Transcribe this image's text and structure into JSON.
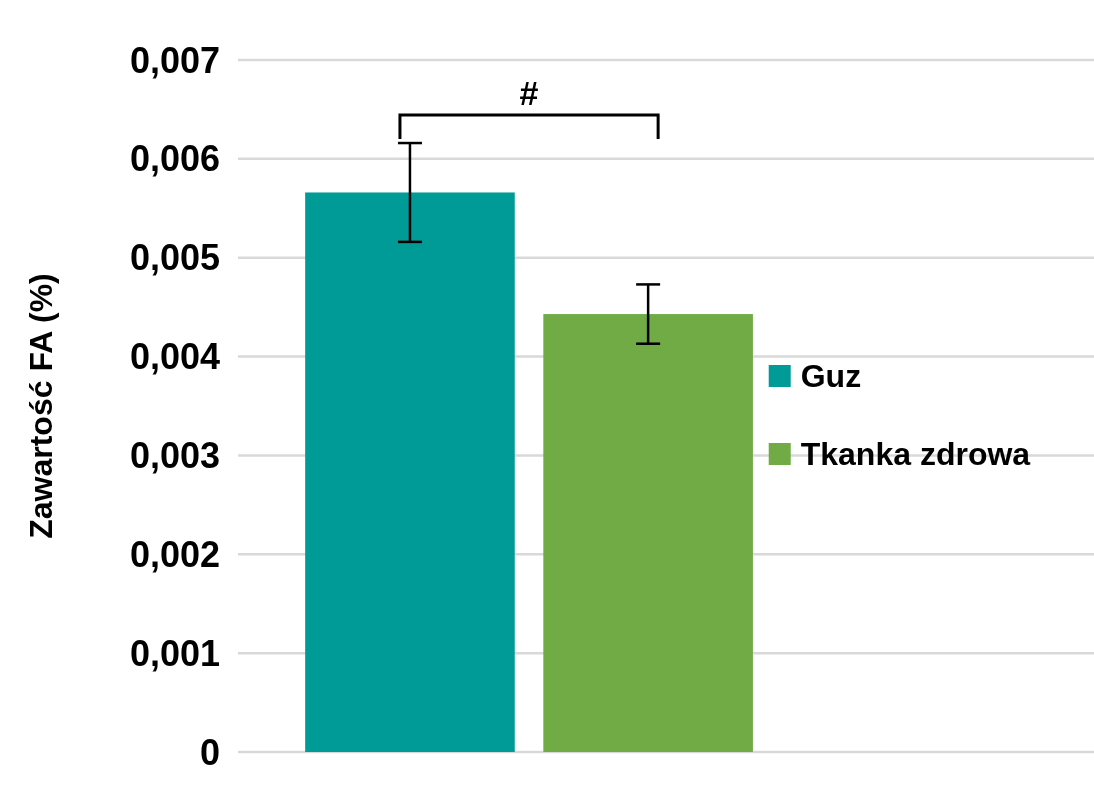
{
  "chart_data": {
    "type": "bar",
    "ylabel": "Zawartość FA (%)",
    "categories": [
      null
    ],
    "series": [
      {
        "name": "Guz",
        "color": "#009a97",
        "values": [
          0.00566
        ],
        "errors": [
          0.0005
        ]
      },
      {
        "name": "Tkanka zdrowa",
        "color": "#70ab46",
        "values": [
          0.00443
        ],
        "errors": [
          0.0003
        ]
      }
    ],
    "ylim": [
      0,
      0.007
    ],
    "yticks": [
      {
        "value": 0,
        "label": "0"
      },
      {
        "value": 0.001,
        "label": "0,001"
      },
      {
        "value": 0.002,
        "label": "0,002"
      },
      {
        "value": 0.003,
        "label": "0,003"
      },
      {
        "value": 0.004,
        "label": "0,004"
      },
      {
        "value": 0.005,
        "label": "0,005"
      },
      {
        "value": 0.006,
        "label": "0,006"
      },
      {
        "value": 0.007,
        "label": "0,007"
      }
    ],
    "grid": "y",
    "legend": "right",
    "annotations": [
      "#"
    ]
  }
}
